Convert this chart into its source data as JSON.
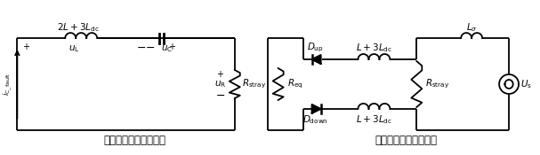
{
  "title_left": "电容放电等效电流回路",
  "title_right": "交流注入等效电流回路",
  "bg_color": "#ffffff",
  "line_color": "#000000",
  "fig_width": 6.07,
  "fig_height": 1.75,
  "dpi": 100
}
